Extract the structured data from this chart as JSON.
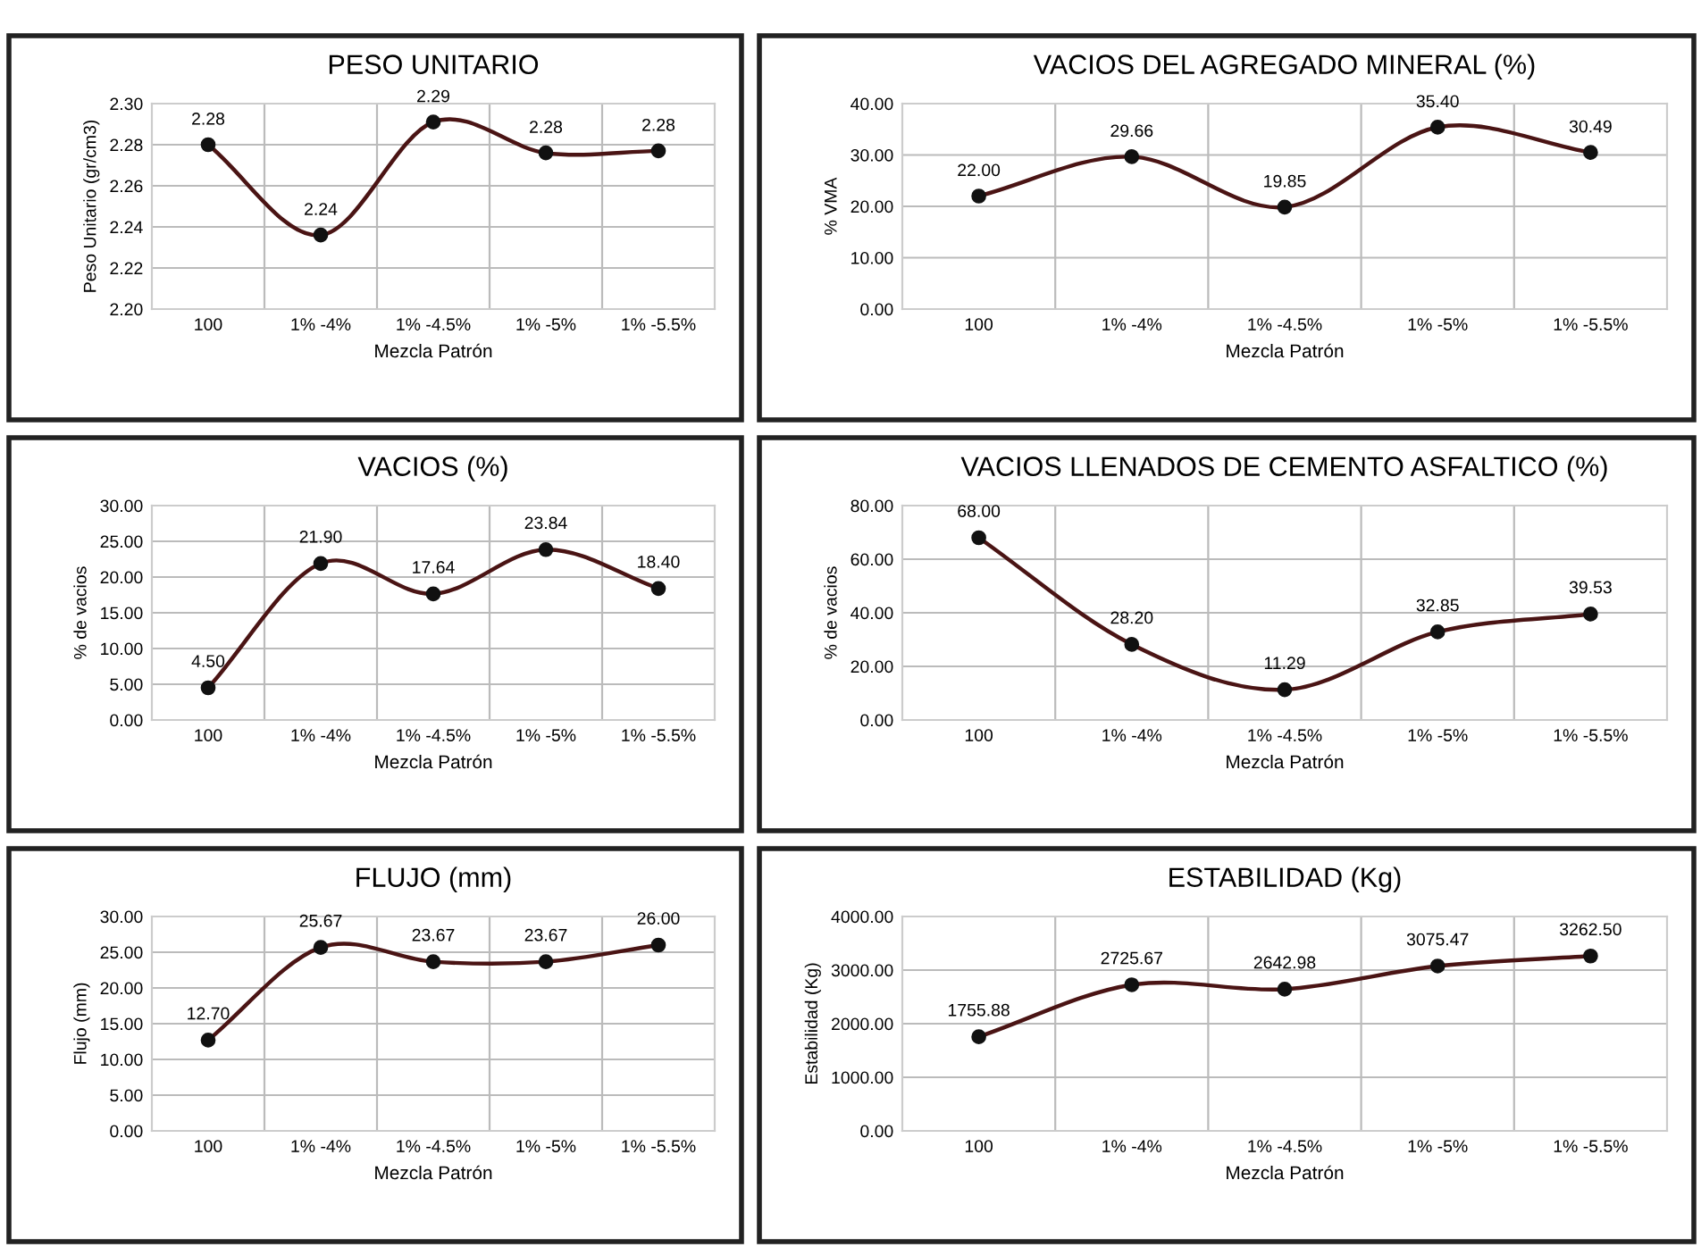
{
  "chart_data": [
    {
      "type": "line",
      "title": "PESO UNITARIO",
      "xlabel": "Mezcla Patrón",
      "ylabel": "Peso Unitario (gr/cm3)",
      "categories": [
        "100",
        "1% -4%",
        "1% -4.5%",
        "1% -5%",
        "1% -5.5%"
      ],
      "series": [
        {
          "color": "#4a1414",
          "values": [
            2.28,
            2.236,
            2.291,
            2.276,
            2.277
          ],
          "value_labels": [
            "2.28",
            "2.24",
            "2.29",
            "2.28",
            "2.28"
          ]
        }
      ],
      "ylim": [
        2.2,
        2.3
      ],
      "yticks": [
        {
          "value": 2.2,
          "label": "2.20"
        },
        {
          "value": 2.22,
          "label": "2.22"
        },
        {
          "value": 2.24,
          "label": "2.24"
        },
        {
          "value": 2.26,
          "label": "2.26"
        },
        {
          "value": 2.28,
          "label": "2.28"
        },
        {
          "value": 2.3,
          "label": "2.30"
        }
      ],
      "grid": true,
      "marker": "circle",
      "line_style": "solid"
    },
    {
      "type": "line",
      "title": "VACIOS DEL AGREGADO MINERAL (%)",
      "xlabel": "Mezcla Patrón",
      "ylabel": "% VMA",
      "categories": [
        "100",
        "1% -4%",
        "1% -4.5%",
        "1% -5%",
        "1% -5.5%"
      ],
      "series": [
        {
          "color": "#4a1414",
          "values": [
            22.0,
            29.66,
            19.85,
            35.4,
            30.49
          ],
          "value_labels": [
            "22.00",
            "29.66",
            "19.85",
            "35.40",
            "30.49"
          ]
        }
      ],
      "ylim": [
        0,
        40
      ],
      "yticks": [
        {
          "value": 0,
          "label": "0.00"
        },
        {
          "value": 10,
          "label": "10.00"
        },
        {
          "value": 20,
          "label": "20.00"
        },
        {
          "value": 30,
          "label": "30.00"
        },
        {
          "value": 40,
          "label": "40.00"
        }
      ],
      "grid": true,
      "marker": "circle",
      "line_style": "solid"
    },
    {
      "type": "line",
      "title": "VACIOS (%)",
      "xlabel": "Mezcla Patrón",
      "ylabel": "% de vacios",
      "categories": [
        "100",
        "1% -4%",
        "1% -4.5%",
        "1% -5%",
        "1% -5.5%"
      ],
      "series": [
        {
          "color": "#4a1414",
          "values": [
            4.5,
            21.9,
            17.64,
            23.84,
            18.4
          ],
          "value_labels": [
            "4.50",
            "21.90",
            "17.64",
            "23.84",
            "18.40"
          ]
        }
      ],
      "ylim": [
        0,
        30
      ],
      "yticks": [
        {
          "value": 0,
          "label": "0.00"
        },
        {
          "value": 5,
          "label": "5.00"
        },
        {
          "value": 10,
          "label": "10.00"
        },
        {
          "value": 15,
          "label": "15.00"
        },
        {
          "value": 20,
          "label": "20.00"
        },
        {
          "value": 25,
          "label": "25.00"
        },
        {
          "value": 30,
          "label": "30.00"
        }
      ],
      "grid": true,
      "marker": "circle",
      "line_style": "solid"
    },
    {
      "type": "line",
      "title": "VACIOS LLENADOS DE CEMENTO ASFALTICO (%)",
      "xlabel": "Mezcla Patrón",
      "ylabel": "% de vacios",
      "categories": [
        "100",
        "1% -4%",
        "1% -4.5%",
        "1% -5%",
        "1% -5.5%"
      ],
      "series": [
        {
          "color": "#4a1414",
          "values": [
            68.0,
            28.2,
            11.29,
            32.85,
            39.53
          ],
          "value_labels": [
            "68.00",
            "28.20",
            "11.29",
            "32.85",
            "39.53"
          ]
        }
      ],
      "ylim": [
        0,
        80
      ],
      "yticks": [
        {
          "value": 0,
          "label": "0.00"
        },
        {
          "value": 20,
          "label": "20.00"
        },
        {
          "value": 40,
          "label": "40.00"
        },
        {
          "value": 60,
          "label": "60.00"
        },
        {
          "value": 80,
          "label": "80.00"
        }
      ],
      "grid": true,
      "marker": "circle",
      "line_style": "solid"
    },
    {
      "type": "line",
      "title": "FLUJO (mm)",
      "xlabel": "Mezcla Patrón",
      "ylabel": "Flujo (mm)",
      "categories": [
        "100",
        "1% -4%",
        "1% -4.5%",
        "1% -5%",
        "1% -5.5%"
      ],
      "series": [
        {
          "color": "#4a1414",
          "values": [
            12.7,
            25.67,
            23.67,
            23.67,
            26.0
          ],
          "value_labels": [
            "12.70",
            "25.67",
            "23.67",
            "23.67",
            "26.00"
          ]
        }
      ],
      "ylim": [
        0,
        30
      ],
      "yticks": [
        {
          "value": 0,
          "label": "0.00"
        },
        {
          "value": 5,
          "label": "5.00"
        },
        {
          "value": 10,
          "label": "10.00"
        },
        {
          "value": 15,
          "label": "15.00"
        },
        {
          "value": 20,
          "label": "20.00"
        },
        {
          "value": 25,
          "label": "25.00"
        },
        {
          "value": 30,
          "label": "30.00"
        }
      ],
      "grid": true,
      "marker": "circle",
      "line_style": "solid"
    },
    {
      "type": "line",
      "title": "ESTABILIDAD (Kg)",
      "xlabel": "Mezcla Patrón",
      "ylabel": "Estabilidad (Kg)",
      "categories": [
        "100",
        "1% -4%",
        "1% -4.5%",
        "1% -5%",
        "1% -5.5%"
      ],
      "series": [
        {
          "color": "#4a1414",
          "values": [
            1755.88,
            2725.67,
            2642.98,
            3075.47,
            3262.5
          ],
          "value_labels": [
            "1755.88",
            "2725.67",
            "2642.98",
            "3075.47",
            "3262.50"
          ]
        }
      ],
      "ylim": [
        0,
        4000
      ],
      "yticks": [
        {
          "value": 0,
          "label": "0.00"
        },
        {
          "value": 1000,
          "label": "1000.00"
        },
        {
          "value": 2000,
          "label": "2000.00"
        },
        {
          "value": 3000,
          "label": "3000.00"
        },
        {
          "value": 4000,
          "label": "4000.00"
        }
      ],
      "grid": true,
      "marker": "circle",
      "line_style": "solid"
    }
  ]
}
